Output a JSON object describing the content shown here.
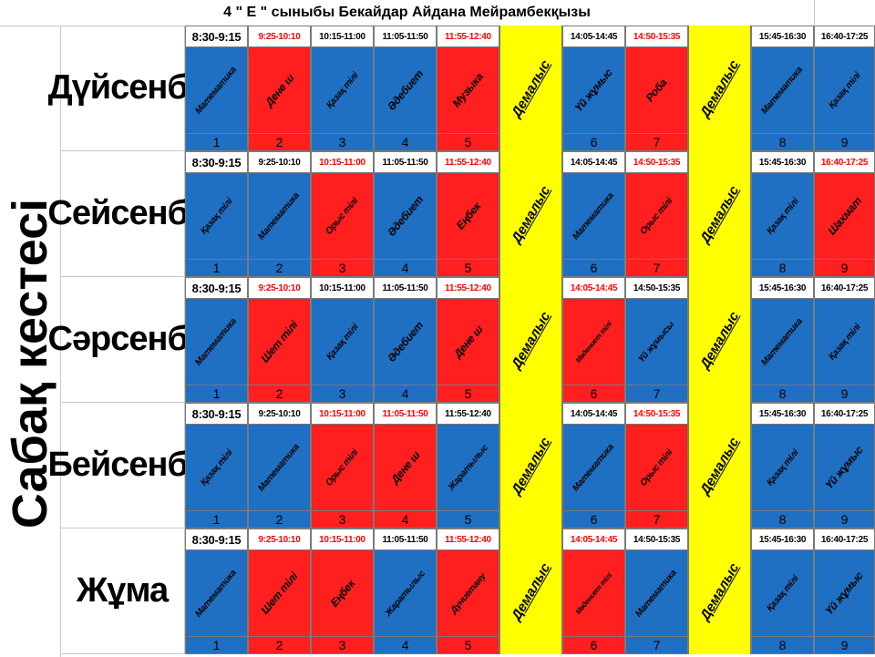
{
  "title": "4 \" Е \" сыныбы Бекайдар Айдана Мейрамбекқызы",
  "side_label": "Сабақ кестесі",
  "break_label": "Демалыс",
  "colors": {
    "blue": "#1f6fc3",
    "red": "#ff1f1f",
    "break": "#ffff00",
    "time_red": "#ff0000"
  },
  "days": [
    {
      "name": "Дүйсенбі",
      "lessons": [
        {
          "time": "8:30-9:15",
          "time_color": "black",
          "subject": "Математика",
          "color": "blue",
          "num": "1"
        },
        {
          "time": "9:25-10:10",
          "time_color": "red",
          "subject": "Дене ш",
          "color": "red",
          "num": "2"
        },
        {
          "time": "10:15-11:00",
          "time_color": "black",
          "subject": "Қазақ тілі",
          "color": "blue",
          "num": "3"
        },
        {
          "time": "11:05-11:50",
          "time_color": "black",
          "subject": "Әдебиет",
          "color": "blue",
          "num": "4"
        },
        {
          "time": "11:55-12:40",
          "time_color": "red",
          "subject": "Музыка",
          "color": "red",
          "num": "5"
        },
        {
          "time": "14:05-14:45",
          "time_color": "black",
          "subject": "Үй жұмыс",
          "color": "blue",
          "num": "6"
        },
        {
          "time": "14:50-15:35",
          "time_color": "red",
          "subject": "Роба",
          "color": "red",
          "num": "7"
        },
        {
          "time": "15:45-16:30",
          "time_color": "black",
          "subject": "Математика",
          "color": "blue",
          "num": "8"
        },
        {
          "time": "16:40-17:25",
          "time_color": "black",
          "subject": "Қазақ тілі",
          "color": "blue",
          "num": "9"
        }
      ]
    },
    {
      "name": "Сейсенбі",
      "lessons": [
        {
          "time": "8:30-9:15",
          "time_color": "black",
          "subject": "Қазақ тілі",
          "color": "blue",
          "num": "1"
        },
        {
          "time": "9:25-10:10",
          "time_color": "black",
          "subject": "Математика",
          "color": "blue",
          "num": "2"
        },
        {
          "time": "10:15-11:00",
          "time_color": "red",
          "subject": "Орыс тілі",
          "color": "red",
          "num": "3"
        },
        {
          "time": "11:05-11:50",
          "time_color": "black",
          "subject": "Әдебиет",
          "color": "blue",
          "num": "4"
        },
        {
          "time": "11:55-12:40",
          "time_color": "red",
          "subject": "Еңбек",
          "color": "red",
          "num": "5"
        },
        {
          "time": "14:05-14:45",
          "time_color": "black",
          "subject": "Математика",
          "color": "blue",
          "num": "6"
        },
        {
          "time": "14:50-15:35",
          "time_color": "red",
          "subject": "Орыс тілі",
          "color": "red",
          "num": "7"
        },
        {
          "time": "15:45-16:30",
          "time_color": "black",
          "subject": "Қазақ тілі",
          "color": "blue",
          "num": "8"
        },
        {
          "time": "16:40-17:25",
          "time_color": "red",
          "subject": "Шахмат",
          "color": "red",
          "num": "9"
        }
      ]
    },
    {
      "name": "Сәрсенбі",
      "lessons": [
        {
          "time": "8:30-9:15",
          "time_color": "black",
          "subject": "Математика",
          "color": "blue",
          "num": "1"
        },
        {
          "time": "9:25-10:10",
          "time_color": "red",
          "subject": "Шет тілі",
          "color": "red",
          "num": "2"
        },
        {
          "time": "10:15-11:00",
          "time_color": "black",
          "subject": "Қазақ тілі",
          "color": "blue",
          "num": "3"
        },
        {
          "time": "11:05-11:50",
          "time_color": "black",
          "subject": "Әдебиет",
          "color": "blue",
          "num": "4"
        },
        {
          "time": "11:55-12:40",
          "time_color": "red",
          "subject": "Дене ш",
          "color": "red",
          "num": "5"
        },
        {
          "time": "14:05-14:45",
          "time_color": "red",
          "subject": "Мәдениет тілі",
          "color": "red",
          "num": "6"
        },
        {
          "time": "14:50-15:35",
          "time_color": "black",
          "subject": "Үй жұмысы",
          "color": "blue",
          "num": "7"
        },
        {
          "time": "15:45-16:30",
          "time_color": "black",
          "subject": "Математика",
          "color": "blue",
          "num": "8"
        },
        {
          "time": "16:40-17:25",
          "time_color": "black",
          "subject": "Қазақ тілі",
          "color": "blue",
          "num": "9"
        }
      ]
    },
    {
      "name": "Бейсенбі",
      "lessons": [
        {
          "time": "8:30-9:15",
          "time_color": "black",
          "subject": "Қазақ тілі",
          "color": "blue",
          "num": "1"
        },
        {
          "time": "9:25-10:10",
          "time_color": "black",
          "subject": "Математика",
          "color": "blue",
          "num": "2"
        },
        {
          "time": "10:15-11:00",
          "time_color": "red",
          "subject": "Орыс тілі",
          "color": "red",
          "num": "3"
        },
        {
          "time": "11:05-11:50",
          "time_color": "red",
          "subject": "Дене ш",
          "color": "red",
          "num": "4"
        },
        {
          "time": "11:55-12:40",
          "time_color": "black",
          "subject": "Жаратылыс",
          "color": "blue",
          "num": "5"
        },
        {
          "time": "14:05-14:45",
          "time_color": "black",
          "subject": "Математика",
          "color": "blue",
          "num": "6"
        },
        {
          "time": "14:50-15:35",
          "time_color": "red",
          "subject": "Орыс тілі",
          "color": "red",
          "num": "7"
        },
        {
          "time": "15:45-16:30",
          "time_color": "black",
          "subject": "Қазақ тілі",
          "color": "blue",
          "num": "8"
        },
        {
          "time": "16:40-17:25",
          "time_color": "black",
          "subject": "Үй жұмыс",
          "color": "blue",
          "num": "9"
        }
      ]
    },
    {
      "name": "Жұма",
      "lessons": [
        {
          "time": "8:30-9:15",
          "time_color": "black",
          "subject": "Математика",
          "color": "blue",
          "num": "1"
        },
        {
          "time": "9:25-10:10",
          "time_color": "red",
          "subject": "Шет тілі",
          "color": "red",
          "num": "2"
        },
        {
          "time": "10:15-11:00",
          "time_color": "red",
          "subject": "Еңбек",
          "color": "red",
          "num": "3"
        },
        {
          "time": "11:05-11:50",
          "time_color": "black",
          "subject": "Жаратылыс",
          "color": "blue",
          "num": "4"
        },
        {
          "time": "11:55-12:40",
          "time_color": "red",
          "subject": "Дүниетану",
          "color": "red",
          "num": "5"
        },
        {
          "time": "14:05-14:45",
          "time_color": "red",
          "subject": "Мәдениет тілі",
          "color": "red",
          "num": "6"
        },
        {
          "time": "14:50-15:35",
          "time_color": "black",
          "subject": "Математика",
          "color": "blue",
          "num": "7"
        },
        {
          "time": "15:45-16:30",
          "time_color": "black",
          "subject": "Қазақ тілі",
          "color": "blue",
          "num": "8"
        },
        {
          "time": "16:40-17:25",
          "time_color": "black",
          "subject": "Үй жұмыс",
          "color": "blue",
          "num": "9"
        }
      ]
    }
  ]
}
